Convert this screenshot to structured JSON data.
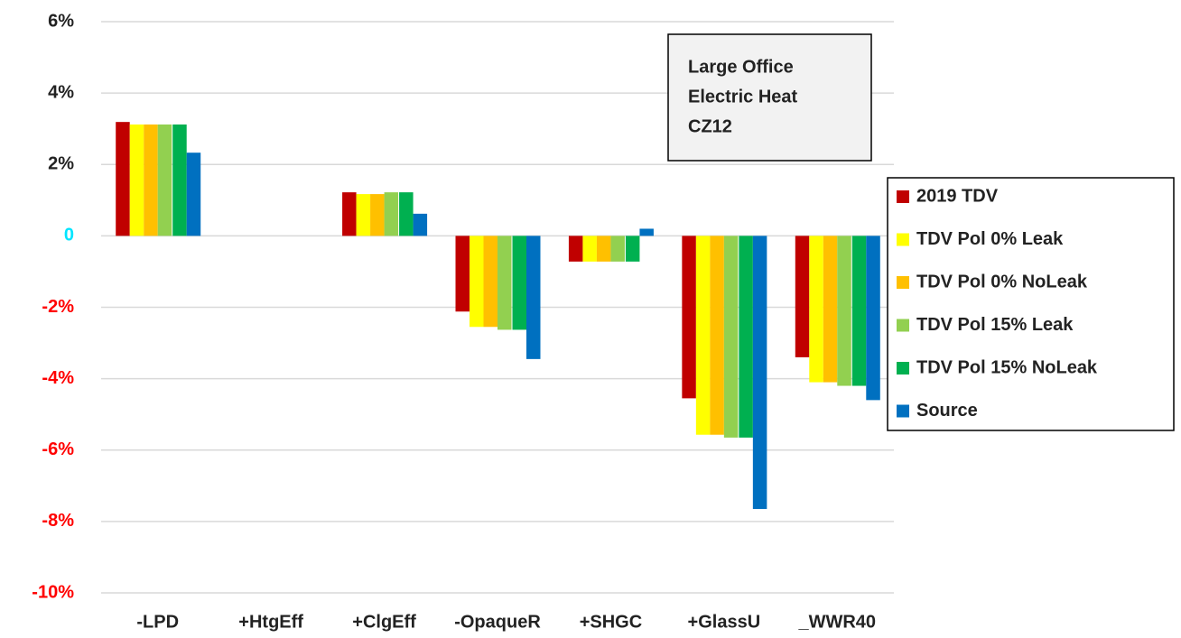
{
  "chart_data": {
    "type": "bar",
    "categories": [
      "-LPD",
      "+HtgEff",
      "+ClgEff",
      "-OpaqueR",
      "+SHGC",
      "+GlassU",
      "_WWR40"
    ],
    "series": [
      {
        "name": "2019 TDV",
        "color": "#c00000",
        "values": [
          3.19,
          0,
          1.22,
          -2.12,
          -0.72,
          -4.55,
          -3.4
        ]
      },
      {
        "name": "TDV Pol 0% Leak",
        "color": "#ffff00",
        "values": [
          3.12,
          0,
          1.17,
          -2.55,
          -0.72,
          -5.57,
          -4.1
        ]
      },
      {
        "name": "TDV Pol 0% NoLeak",
        "color": "#ffc000",
        "values": [
          3.12,
          0,
          1.17,
          -2.55,
          -0.72,
          -5.57,
          -4.1
        ]
      },
      {
        "name": "TDV Pol 15% Leak",
        "color": "#92d050",
        "values": [
          3.12,
          0,
          1.22,
          -2.63,
          -0.72,
          -5.65,
          -4.2
        ]
      },
      {
        "name": "TDV Pol 15% NoLeak",
        "color": "#00b050",
        "values": [
          3.12,
          0,
          1.22,
          -2.63,
          -0.72,
          -5.65,
          -4.2
        ]
      },
      {
        "name": "Source",
        "color": "#0070c0",
        "values": [
          2.33,
          0,
          0.62,
          -3.45,
          0.2,
          -7.65,
          -4.6
        ]
      }
    ],
    "annotation": [
      "Large Office",
      "Electric Heat",
      "CZ12"
    ],
    "ylim": [
      -10,
      6
    ],
    "yticks": [
      {
        "value": -10,
        "label": "-10%"
      },
      {
        "value": -8,
        "label": "-8%"
      },
      {
        "value": -6,
        "label": "-6%"
      },
      {
        "value": -4,
        "label": "-4%"
      },
      {
        "value": -2,
        "label": "-2%"
      },
      0,
      {
        "value": 2,
        "label": "2%"
      },
      {
        "value": 4,
        "label": "4%"
      },
      {
        "value": 6,
        "label": "6%"
      }
    ],
    "grid": true,
    "legend": "right"
  }
}
